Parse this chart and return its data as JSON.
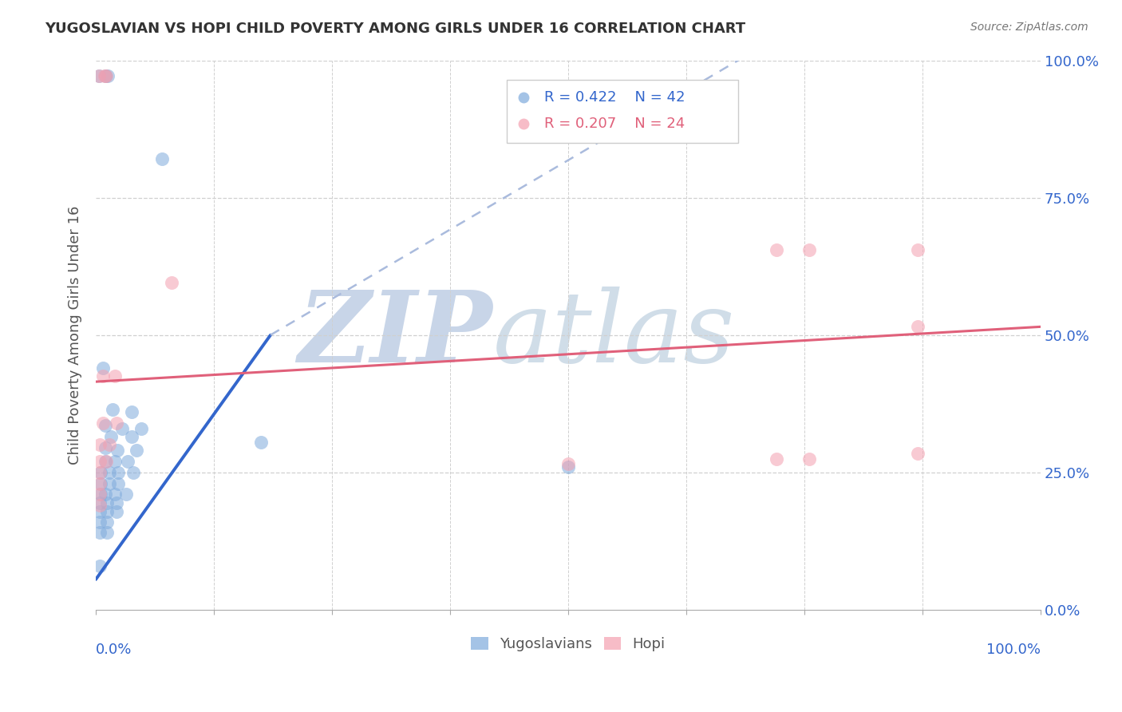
{
  "title": "YUGOSLAVIAN VS HOPI CHILD POVERTY AMONG GIRLS UNDER 16 CORRELATION CHART",
  "source": "Source: ZipAtlas.com",
  "ylabel": "Child Poverty Among Girls Under 16",
  "xlim": [
    0,
    1
  ],
  "ylim": [
    0,
    1
  ],
  "ytick_labels": [
    "0.0%",
    "25.0%",
    "50.0%",
    "75.0%",
    "100.0%"
  ],
  "ytick_values": [
    0,
    0.25,
    0.5,
    0.75,
    1.0
  ],
  "legend_blue_r": "R = 0.422",
  "legend_blue_n": "N = 42",
  "legend_pink_r": "R = 0.207",
  "legend_pink_n": "N = 24",
  "legend_blue_label": "Yugoslavians",
  "legend_pink_label": "Hopi",
  "blue_color": "#7eaadc",
  "pink_color": "#f4a0b0",
  "watermark_zip": "ZIP",
  "watermark_atlas": "atlas",
  "blue_scatter": [
    [
      0.003,
      0.972
    ],
    [
      0.01,
      0.972
    ],
    [
      0.013,
      0.972
    ],
    [
      0.07,
      0.82
    ],
    [
      0.008,
      0.44
    ],
    [
      0.018,
      0.365
    ],
    [
      0.038,
      0.36
    ],
    [
      0.01,
      0.335
    ],
    [
      0.028,
      0.33
    ],
    [
      0.048,
      0.33
    ],
    [
      0.016,
      0.315
    ],
    [
      0.038,
      0.315
    ],
    [
      0.01,
      0.295
    ],
    [
      0.023,
      0.29
    ],
    [
      0.043,
      0.29
    ],
    [
      0.01,
      0.27
    ],
    [
      0.02,
      0.27
    ],
    [
      0.034,
      0.27
    ],
    [
      0.005,
      0.25
    ],
    [
      0.014,
      0.25
    ],
    [
      0.024,
      0.25
    ],
    [
      0.04,
      0.25
    ],
    [
      0.005,
      0.23
    ],
    [
      0.014,
      0.23
    ],
    [
      0.024,
      0.23
    ],
    [
      0.005,
      0.21
    ],
    [
      0.01,
      0.21
    ],
    [
      0.02,
      0.21
    ],
    [
      0.032,
      0.21
    ],
    [
      0.004,
      0.195
    ],
    [
      0.012,
      0.195
    ],
    [
      0.022,
      0.195
    ],
    [
      0.004,
      0.178
    ],
    [
      0.012,
      0.178
    ],
    [
      0.022,
      0.178
    ],
    [
      0.004,
      0.16
    ],
    [
      0.012,
      0.16
    ],
    [
      0.004,
      0.14
    ],
    [
      0.012,
      0.14
    ],
    [
      0.004,
      0.08
    ],
    [
      0.175,
      0.305
    ],
    [
      0.5,
      0.26
    ]
  ],
  "pink_scatter": [
    [
      0.003,
      0.972
    ],
    [
      0.009,
      0.972
    ],
    [
      0.011,
      0.972
    ],
    [
      0.08,
      0.595
    ],
    [
      0.008,
      0.425
    ],
    [
      0.02,
      0.425
    ],
    [
      0.008,
      0.34
    ],
    [
      0.022,
      0.34
    ],
    [
      0.004,
      0.3
    ],
    [
      0.014,
      0.3
    ],
    [
      0.004,
      0.27
    ],
    [
      0.011,
      0.27
    ],
    [
      0.004,
      0.25
    ],
    [
      0.004,
      0.23
    ],
    [
      0.004,
      0.21
    ],
    [
      0.004,
      0.19
    ],
    [
      0.5,
      0.265
    ],
    [
      0.72,
      0.275
    ],
    [
      0.755,
      0.275
    ],
    [
      0.72,
      0.655
    ],
    [
      0.755,
      0.655
    ],
    [
      0.87,
      0.655
    ],
    [
      0.87,
      0.515
    ],
    [
      0.87,
      0.285
    ]
  ],
  "blue_line_solid": [
    [
      0.0,
      0.055
    ],
    [
      0.185,
      0.5
    ]
  ],
  "blue_line_dashed": [
    [
      0.185,
      0.5
    ],
    [
      0.68,
      1.0
    ]
  ],
  "pink_line": [
    [
      0.0,
      0.415
    ],
    [
      1.0,
      0.515
    ]
  ],
  "background_color": "#ffffff",
  "grid_color": "#d0d0d0",
  "title_color": "#333333",
  "watermark_color_zip": "#c8d5e8",
  "watermark_color_atlas": "#d0dde8"
}
